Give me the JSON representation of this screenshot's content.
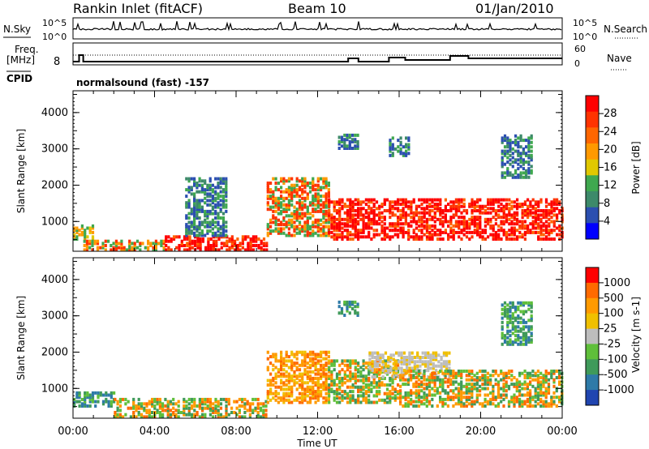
{
  "header": {
    "station": "Rankin Inlet (fitACF)",
    "beam": "Beam 10",
    "date": "01/Jan/2010"
  },
  "status_panel": {
    "nsky_label": "N.Sky",
    "nsky_ticks": [
      "10^5",
      "10^0"
    ],
    "nsearch_label": "N.Search",
    "nsearch_ticks": [
      "10^5",
      "10^0"
    ],
    "freq_label": "Freq.",
    "freq_unit": "[MHz]",
    "freq_ticks": [
      "8"
    ],
    "nave_label": "Nave",
    "nave_ticks": [
      "60",
      "0"
    ],
    "cpid_label": "CPID",
    "cpid_value": "normalsound (fast) -157"
  },
  "colors": {
    "power_scale": [
      "#0000ff",
      "#2b4fb0",
      "#3d8a6a",
      "#3fa84f",
      "#e0c800",
      "#ff9900",
      "#ff6600",
      "#ff3300",
      "#ff0000"
    ],
    "velocity_scale": [
      "#2045b0",
      "#2e7aa8",
      "#3f9a5a",
      "#5fbf3a",
      "#bdbdbd",
      "#f0c000",
      "#ff9a00",
      "#ff6a00",
      "#ff0000"
    ]
  },
  "chart_data": [
    {
      "type": "heatmap",
      "name": "power",
      "title": "",
      "xlabel": "",
      "ylabel": "Slant Range [km]",
      "xticks": [
        "00:00",
        "04:00",
        "08:00",
        "12:00",
        "16:00",
        "20:00",
        "00:00"
      ],
      "xlim_hours": [
        0,
        24
      ],
      "ylim": [
        180,
        4600
      ],
      "yticks": [
        "1000",
        "2000",
        "3000",
        "4000"
      ],
      "colorbar": {
        "label": "Power [dB]",
        "ticks": [
          "28",
          "24",
          "20",
          "16",
          "12",
          "8",
          "4"
        ],
        "range": [
          0,
          30
        ]
      },
      "regions": [
        {
          "t": [
            0,
            1.0
          ],
          "r": [
            500,
            900
          ],
          "level": "medium"
        },
        {
          "t": [
            0.5,
            4.5
          ],
          "r": [
            200,
            500
          ],
          "level": "high"
        },
        {
          "t": [
            4.5,
            9.5
          ],
          "r": [
            200,
            600
          ],
          "level": "very_high"
        },
        {
          "t": [
            5.5,
            7.5
          ],
          "r": [
            600,
            2200
          ],
          "level": "low"
        },
        {
          "t": [
            9.5,
            12.5
          ],
          "r": [
            600,
            2200
          ],
          "level": "high"
        },
        {
          "t": [
            12.5,
            24
          ],
          "r": [
            500,
            1600
          ],
          "level": "very_high"
        },
        {
          "t": [
            13,
            14
          ],
          "r": [
            3000,
            3400
          ],
          "level": "low"
        },
        {
          "t": [
            15.5,
            16.5
          ],
          "r": [
            2800,
            3300
          ],
          "level": "low"
        },
        {
          "t": [
            21,
            22.5
          ],
          "r": [
            2200,
            3400
          ],
          "level": "low"
        }
      ]
    },
    {
      "type": "heatmap",
      "name": "velocity",
      "title": "",
      "xlabel": "Time UT",
      "ylabel": "Slant Range [km]",
      "xticks": [
        "00:00",
        "04:00",
        "08:00",
        "12:00",
        "16:00",
        "20:00",
        "00:00"
      ],
      "xlim_hours": [
        0,
        24
      ],
      "ylim": [
        180,
        4600
      ],
      "yticks": [
        "1000",
        "2000",
        "3000",
        "4000"
      ],
      "colorbar": {
        "label": "Velocity [m s-1]",
        "ticks": [
          "1000",
          "500",
          "100",
          "25",
          "-25",
          "-100",
          "-500",
          "-1000"
        ],
        "range": [
          -1000,
          1000
        ]
      },
      "regions": [
        {
          "t": [
            0,
            2.0
          ],
          "r": [
            500,
            900
          ],
          "level": "positive"
        },
        {
          "t": [
            2.0,
            9.5
          ],
          "r": [
            200,
            700
          ],
          "level": "mixed"
        },
        {
          "t": [
            9.5,
            12.5
          ],
          "r": [
            600,
            2000
          ],
          "level": "negative"
        },
        {
          "t": [
            12.5,
            16
          ],
          "r": [
            600,
            1800
          ],
          "level": "mixed"
        },
        {
          "t": [
            14.5,
            18.5
          ],
          "r": [
            1300,
            2000
          ],
          "level": "near_zero"
        },
        {
          "t": [
            16,
            24
          ],
          "r": [
            500,
            1500
          ],
          "level": "mixed"
        },
        {
          "t": [
            13,
            14
          ],
          "r": [
            3000,
            3400
          ],
          "level": "positive"
        },
        {
          "t": [
            21,
            22.5
          ],
          "r": [
            2200,
            3400
          ],
          "level": "positive"
        }
      ]
    }
  ]
}
